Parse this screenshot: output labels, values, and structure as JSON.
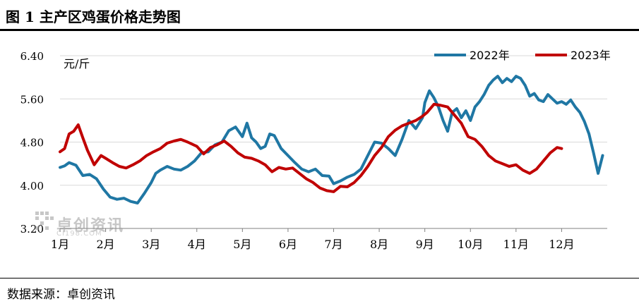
{
  "figure": {
    "title": "图 1  主产区鸡蛋价格走势图",
    "source": "数据来源：卓创资讯",
    "watermark": "卓创资讯",
    "watermark_sub": "CI198.COM"
  },
  "chart_data": {
    "type": "line",
    "ylabel": "元/斤",
    "ylim": [
      3.2,
      6.4
    ],
    "yticks": [
      6.4,
      5.6,
      4.8,
      4.0,
      3.2
    ],
    "ytick_labels": [
      "6.40",
      "5.60",
      "4.80",
      "4.00",
      "3.20"
    ],
    "xtick_labels": [
      "1月",
      "2月",
      "3月",
      "4月",
      "5月",
      "6月",
      "7月",
      "8月",
      "9月",
      "10月",
      "11月",
      "12月"
    ],
    "x_unit": "month",
    "xlim": [
      1,
      13
    ],
    "grid": "horizontal",
    "legend_position": "top-right",
    "series": [
      {
        "name": "2022年",
        "color": "#1f77a4",
        "x": [
          1.0,
          1.1,
          1.2,
          1.35,
          1.5,
          1.65,
          1.8,
          1.95,
          2.1,
          2.25,
          2.4,
          2.55,
          2.7,
          2.85,
          3.0,
          3.1,
          3.2,
          3.35,
          3.5,
          3.65,
          3.8,
          3.95,
          4.1,
          4.25,
          4.4,
          4.55,
          4.7,
          4.85,
          5.0,
          5.1,
          5.2,
          5.3,
          5.4,
          5.5,
          5.6,
          5.7,
          5.85,
          6.0,
          6.15,
          6.3,
          6.45,
          6.6,
          6.75,
          6.9,
          7.0,
          7.15,
          7.3,
          7.45,
          7.6,
          7.75,
          7.9,
          8.05,
          8.2,
          8.35,
          8.5,
          8.65,
          8.8,
          8.95,
          9.0,
          9.1,
          9.2,
          9.3,
          9.4,
          9.5,
          9.6,
          9.7,
          9.8,
          9.9,
          10.0,
          10.1,
          10.2,
          10.3,
          10.4,
          10.5,
          10.6,
          10.7,
          10.8,
          10.9,
          11.0,
          11.1,
          11.2,
          11.3,
          11.4,
          11.5,
          11.6,
          11.7,
          11.8,
          11.9,
          12.0,
          12.1,
          12.2,
          12.3,
          12.4,
          12.5,
          12.6,
          12.7,
          12.8,
          12.9
        ],
        "values": [
          4.33,
          4.36,
          4.42,
          4.37,
          4.18,
          4.2,
          4.12,
          3.93,
          3.78,
          3.74,
          3.76,
          3.7,
          3.67,
          3.85,
          4.05,
          4.22,
          4.28,
          4.35,
          4.3,
          4.28,
          4.35,
          4.45,
          4.6,
          4.62,
          4.75,
          4.8,
          5.01,
          5.08,
          4.9,
          5.15,
          4.88,
          4.8,
          4.68,
          4.72,
          4.95,
          4.92,
          4.68,
          4.55,
          4.42,
          4.3,
          4.25,
          4.3,
          4.18,
          4.17,
          4.03,
          4.08,
          4.15,
          4.2,
          4.3,
          4.55,
          4.8,
          4.78,
          4.68,
          4.55,
          4.85,
          5.2,
          5.05,
          5.25,
          5.53,
          5.75,
          5.62,
          5.45,
          5.2,
          5.0,
          5.35,
          5.42,
          5.25,
          5.38,
          5.2,
          5.45,
          5.55,
          5.68,
          5.85,
          5.95,
          6.02,
          5.9,
          5.98,
          5.92,
          6.02,
          5.98,
          5.85,
          5.65,
          5.7,
          5.58,
          5.55,
          5.68,
          5.6,
          5.52,
          5.55,
          5.5,
          5.58,
          5.45,
          5.35,
          5.18,
          4.95,
          4.6,
          4.22,
          4.55
        ]
      },
      {
        "name": "2023年",
        "color": "#c00000",
        "x": [
          1.0,
          1.1,
          1.2,
          1.3,
          1.4,
          1.5,
          1.6,
          1.75,
          1.9,
          2.0,
          2.15,
          2.3,
          2.45,
          2.6,
          2.75,
          2.9,
          3.05,
          3.2,
          3.35,
          3.5,
          3.65,
          3.8,
          4.0,
          4.15,
          4.3,
          4.45,
          4.6,
          4.75,
          4.9,
          5.05,
          5.2,
          5.35,
          5.5,
          5.65,
          5.8,
          5.95,
          6.1,
          6.25,
          6.4,
          6.55,
          6.7,
          6.85,
          7.0,
          7.15,
          7.3,
          7.45,
          7.6,
          7.75,
          7.9,
          8.05,
          8.2,
          8.35,
          8.5,
          8.65,
          8.8,
          8.95,
          9.05,
          9.2,
          9.35,
          9.5,
          9.65,
          9.8,
          9.95,
          10.1,
          10.25,
          10.4,
          10.55,
          10.7,
          10.85,
          11.0,
          11.15,
          11.3,
          11.45,
          11.6,
          11.75,
          11.9,
          12.0
        ],
        "values": [
          4.62,
          4.68,
          4.95,
          5.0,
          5.12,
          4.88,
          4.65,
          4.38,
          4.55,
          4.5,
          4.42,
          4.35,
          4.32,
          4.38,
          4.45,
          4.55,
          4.62,
          4.68,
          4.78,
          4.82,
          4.85,
          4.8,
          4.72,
          4.58,
          4.7,
          4.75,
          4.82,
          4.72,
          4.6,
          4.52,
          4.5,
          4.45,
          4.38,
          4.25,
          4.33,
          4.3,
          4.32,
          4.22,
          4.12,
          4.05,
          3.95,
          3.9,
          3.88,
          3.98,
          3.97,
          4.05,
          4.18,
          4.35,
          4.55,
          4.7,
          4.9,
          5.02,
          5.1,
          5.15,
          5.2,
          5.28,
          5.35,
          5.5,
          5.48,
          5.45,
          5.3,
          5.15,
          4.9,
          4.85,
          4.72,
          4.55,
          4.45,
          4.4,
          4.35,
          4.38,
          4.28,
          4.22,
          4.3,
          4.45,
          4.6,
          4.7,
          4.68
        ]
      }
    ]
  }
}
